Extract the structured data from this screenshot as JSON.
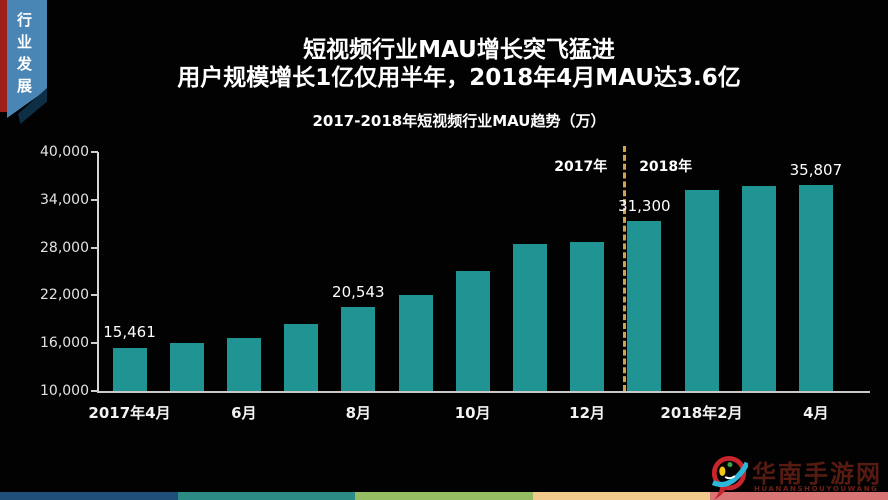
{
  "ribbon": {
    "label": "行业发展"
  },
  "header": {
    "title_line1": "短视频行业MAU增长突飞猛进",
    "title_line2": "用户规模增长1亿仅用半年，2018年4月MAU达3.6亿"
  },
  "chart_data": {
    "type": "bar",
    "title": "2017-2018年短视频行业MAU趋势（万）",
    "categories": [
      "2017年4月",
      "2017年5月",
      "2017年6月",
      "2017年7月",
      "2017年8月",
      "2017年9月",
      "2017年10月",
      "2017年11月",
      "2017年12月",
      "2018年1月",
      "2018年2月",
      "2018年3月",
      "2018年4月"
    ],
    "values": [
      15461,
      16000,
      16600,
      18400,
      20543,
      22100,
      25100,
      28400,
      28700,
      31300,
      35200,
      35700,
      35807
    ],
    "labeled_points": [
      {
        "index": 0,
        "label": "15,461"
      },
      {
        "index": 4,
        "label": "20,543"
      },
      {
        "index": 9,
        "label": "31,300"
      },
      {
        "index": 12,
        "label": "35,807"
      }
    ],
    "x_tick_labels": [
      "2017年4月",
      "6月",
      "8月",
      "10月",
      "12月",
      "2018年2月",
      "4月"
    ],
    "x_tick_every": 2,
    "y_ticks": [
      {
        "label": "40,000",
        "value": 40000
      },
      {
        "label": "34,000",
        "value": 34000
      },
      {
        "label": "28,000",
        "value": 28000
      },
      {
        "label": "22,000",
        "value": 22000
      },
      {
        "label": "16,000",
        "value": 16000
      },
      {
        "label": "10,000",
        "value": 10000
      }
    ],
    "ylim": [
      10000,
      40000
    ],
    "grid": false,
    "legend": "none",
    "divider": {
      "after_index": 8,
      "left_label": "2017年",
      "right_label": "2018年"
    }
  },
  "footer": {
    "logo_name": "华南手游网",
    "logo_subtitle": "HUANANSHOUYOUWANG"
  },
  "colors": {
    "background": "#020202",
    "bar": "#1f9492",
    "divider": "#cfa44c",
    "ribbon_red": "#9e201a",
    "ribbon_blue": "#4a86b5",
    "strip_segments": [
      "#1f4e79",
      "#2b8c86",
      "#95bc62",
      "#f2ca8c",
      "#d97575"
    ],
    "logo_text": "#571b12"
  }
}
